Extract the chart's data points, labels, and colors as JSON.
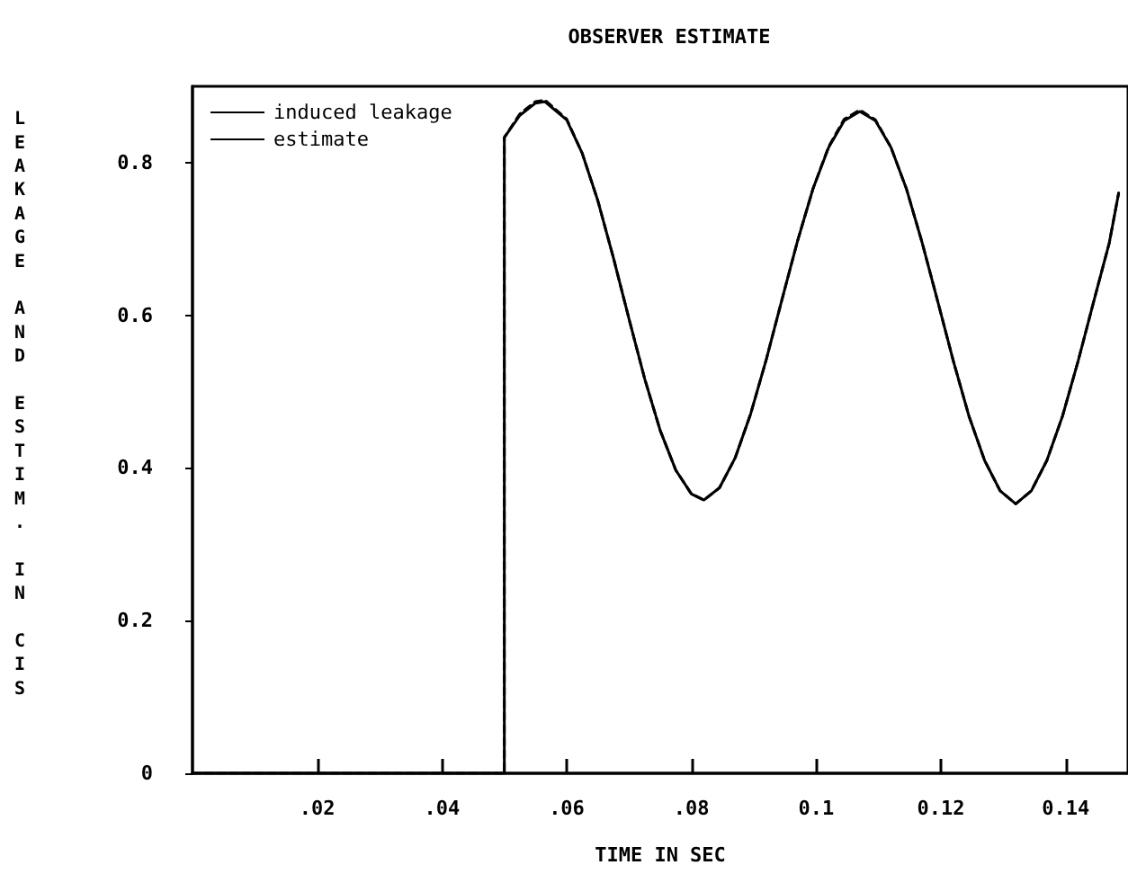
{
  "chart_data": {
    "type": "line",
    "title": "OBSERVER ESTIMATE",
    "xlabel": "TIME IN SEC",
    "ylabel": "LEAKAGE AND ESTIM. IN CIS",
    "x": [
      0,
      0.05,
      0.05,
      0.0525,
      0.055,
      0.0565,
      0.06,
      0.0625,
      0.065,
      0.0675,
      0.07,
      0.0725,
      0.075,
      0.0775,
      0.08,
      0.082,
      0.0845,
      0.087,
      0.0895,
      0.092,
      0.0945,
      0.097,
      0.0995,
      0.102,
      0.1045,
      0.107,
      0.1095,
      0.112,
      0.1145,
      0.117,
      0.1195,
      0.122,
      0.1245,
      0.127,
      0.1295,
      0.132,
      0.1345,
      0.137,
      0.1395,
      0.142,
      0.1445,
      0.147,
      0.1485
    ],
    "series": [
      {
        "name": "induced leakage",
        "color": "#000000",
        "line_style": "solid",
        "values": [
          0,
          0,
          0.833,
          0.862,
          0.878,
          0.88,
          0.856,
          0.812,
          0.75,
          0.675,
          0.595,
          0.517,
          0.449,
          0.397,
          0.366,
          0.358,
          0.374,
          0.413,
          0.471,
          0.542,
          0.62,
          0.697,
          0.766,
          0.82,
          0.855,
          0.867,
          0.855,
          0.82,
          0.765,
          0.695,
          0.618,
          0.54,
          0.468,
          0.41,
          0.37,
          0.353,
          0.37,
          0.41,
          0.468,
          0.54,
          0.618,
          0.695,
          0.76
        ]
      },
      {
        "name": "estimate",
        "color": "#000000",
        "line_style": "dashed",
        "values": [
          0,
          0,
          0.833,
          0.864,
          0.88,
          0.882,
          0.857,
          0.812,
          0.75,
          0.675,
          0.595,
          0.517,
          0.449,
          0.397,
          0.366,
          0.358,
          0.374,
          0.413,
          0.471,
          0.542,
          0.62,
          0.697,
          0.766,
          0.821,
          0.857,
          0.869,
          0.856,
          0.82,
          0.765,
          0.695,
          0.618,
          0.54,
          0.468,
          0.41,
          0.37,
          0.353,
          0.37,
          0.41,
          0.468,
          0.54,
          0.618,
          0.695,
          0.76
        ]
      }
    ],
    "xlim": [
      0,
      0.15
    ],
    "xticks": [
      {
        "value": 0.02,
        "label": ".02"
      },
      {
        "value": 0.04,
        "label": ".04"
      },
      {
        "value": 0.06,
        "label": ".06"
      },
      {
        "value": 0.08,
        "label": ".08"
      },
      0.1,
      0.12,
      0.14
    ],
    "ylim": [
      0,
      0.9
    ],
    "yticks": [
      0,
      0.2,
      0.4,
      0.6,
      0.8
    ],
    "legend": "top left",
    "marker": "none"
  }
}
